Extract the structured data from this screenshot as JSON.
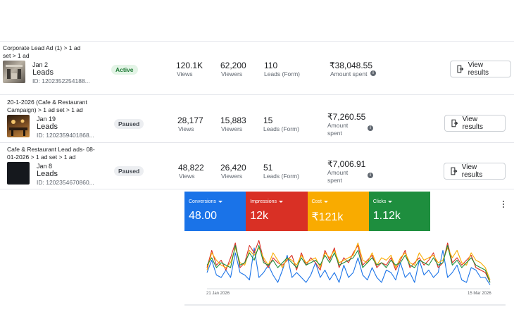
{
  "rows": [
    {
      "breadcrumb": "Corporate Lead Ad (1) > 1 ad set > 1 ad",
      "date": "Jan 2",
      "ad_type": "Leads",
      "ad_id": "ID: 1202352254188...",
      "status": "Active",
      "views": "120.1K",
      "views_label": "Views",
      "viewers": "62,200",
      "viewers_label": "Viewers",
      "leads": "110",
      "leads_label": "Leads (Form)",
      "amount": "₹38,048.55",
      "amount_label": "Amount spent",
      "button_label": "View results"
    },
    {
      "breadcrumb": "20-1-2026 (Cafe & Restaurant Campaign) > 1 ad set > 1 ad",
      "date": "Jan 19",
      "ad_type": "Leads",
      "ad_id": "ID: 1202359401868...",
      "status": "Paused",
      "views": "28,177",
      "views_label": "Views",
      "viewers": "15,883",
      "viewers_label": "Viewers",
      "leads": "15",
      "leads_label": "Leads (Form)",
      "amount": "₹7,260.55",
      "amount_label": "Amount spent",
      "button_label": "View results"
    },
    {
      "breadcrumb": "Cafe & Restaurant Lead ads- 08-01-2026 > 1 ad set > 1 ad",
      "date": "Jan 8",
      "ad_type": "Leads",
      "ad_id": "ID: 1202354670860...",
      "status": "Paused",
      "views": "48,822",
      "views_label": "Views",
      "viewers": "26,420",
      "viewers_label": "Viewers",
      "leads": "51",
      "leads_label": "Leads (Form)",
      "amount": "₹7,006.91",
      "amount_label": "Amount spent",
      "button_label": "View results"
    }
  ],
  "colors": {
    "conversions": "#1a73e8",
    "impressions": "#d93025",
    "cost": "#f9ab00",
    "clicks": "#1e8e3e",
    "active_badge": "#e3f4e6",
    "paused_badge": "#eceef1"
  },
  "metric_cards": [
    {
      "label": "Conversions",
      "value": "48.00"
    },
    {
      "label": "Impressions",
      "value": "12k"
    },
    {
      "label": "Cost",
      "value": "₹121k"
    },
    {
      "label": "Clicks",
      "value": "1.12k"
    }
  ],
  "chart_data": {
    "type": "line",
    "x_start_label": "21 Jan 2026",
    "x_end_label": "15 Mar 2026",
    "grid": false,
    "legend": "none",
    "series": [
      {
        "name": "Conversions",
        "color": "#1a73e8",
        "values": [
          0.3,
          0.55,
          0.25,
          0.2,
          0.35,
          0.2,
          0.7,
          0.3,
          0.25,
          0.15,
          0.8,
          0.2,
          0.3,
          0.45,
          0.25,
          0.1,
          0.35,
          0.65,
          0.2,
          0.3,
          0.2,
          0.1,
          0.25,
          0.5,
          0.2,
          0.35,
          0.15,
          0.3,
          0.1,
          0.45,
          0.2,
          0.3,
          0.6,
          0.25,
          0.15,
          0.4,
          0.2,
          0.1,
          0.35,
          0.3,
          0.15,
          0.5,
          0.2,
          0.3,
          0.1,
          0.55,
          0.25,
          0.35,
          0.2,
          0.3,
          0.75,
          0.2,
          0.3,
          0.45,
          0.15,
          0.1,
          0.4,
          0.35,
          0.2,
          0.2,
          0.05
        ]
      },
      {
        "name": "Impressions",
        "color": "#d93025",
        "values": [
          0.4,
          0.75,
          0.45,
          0.55,
          0.35,
          0.6,
          0.9,
          0.4,
          0.5,
          0.85,
          0.7,
          0.95,
          0.55,
          0.4,
          0.6,
          0.5,
          0.45,
          0.55,
          0.65,
          0.35,
          0.7,
          0.45,
          0.6,
          0.5,
          0.35,
          0.75,
          0.55,
          0.8,
          0.4,
          0.6,
          0.5,
          0.7,
          0.85,
          0.45,
          0.55,
          0.65,
          0.4,
          0.5,
          0.45,
          0.6,
          0.35,
          0.55,
          0.75,
          0.4,
          0.5,
          0.6,
          0.45,
          0.55,
          0.7,
          0.4,
          0.5,
          0.9,
          0.5,
          0.6,
          0.45,
          0.55,
          0.65,
          0.4,
          0.35,
          0.3,
          0.1
        ]
      },
      {
        "name": "Cost",
        "color": "#f9ab00",
        "values": [
          0.35,
          0.7,
          0.55,
          0.45,
          0.4,
          0.5,
          0.8,
          0.5,
          0.45,
          0.75,
          0.65,
          0.8,
          0.6,
          0.45,
          0.7,
          0.55,
          0.4,
          0.6,
          0.55,
          0.45,
          0.65,
          0.5,
          0.55,
          0.6,
          0.4,
          0.7,
          0.6,
          0.75,
          0.5,
          0.55,
          0.6,
          0.65,
          0.9,
          0.55,
          0.5,
          0.7,
          0.45,
          0.6,
          0.55,
          0.65,
          0.4,
          0.6,
          0.7,
          0.5,
          0.45,
          0.7,
          0.55,
          0.6,
          0.65,
          0.5,
          0.55,
          0.8,
          0.6,
          0.75,
          0.5,
          0.45,
          0.7,
          0.55,
          0.5,
          0.4,
          0.15
        ]
      },
      {
        "name": "Clicks",
        "color": "#1e8e3e",
        "values": [
          0.45,
          0.6,
          0.4,
          0.5,
          0.45,
          0.4,
          0.85,
          0.45,
          0.5,
          0.7,
          0.55,
          0.85,
          0.5,
          0.45,
          0.55,
          0.4,
          0.5,
          0.6,
          0.5,
          0.4,
          0.6,
          0.45,
          0.5,
          0.55,
          0.45,
          0.65,
          0.5,
          0.7,
          0.45,
          0.5,
          0.55,
          0.6,
          0.75,
          0.4,
          0.5,
          0.6,
          0.45,
          0.5,
          0.4,
          0.55,
          0.45,
          0.5,
          0.65,
          0.45,
          0.4,
          0.55,
          0.5,
          0.45,
          0.6,
          0.45,
          0.5,
          0.85,
          0.45,
          0.55,
          0.4,
          0.5,
          0.6,
          0.45,
          0.4,
          0.35,
          0.1
        ]
      }
    ]
  }
}
